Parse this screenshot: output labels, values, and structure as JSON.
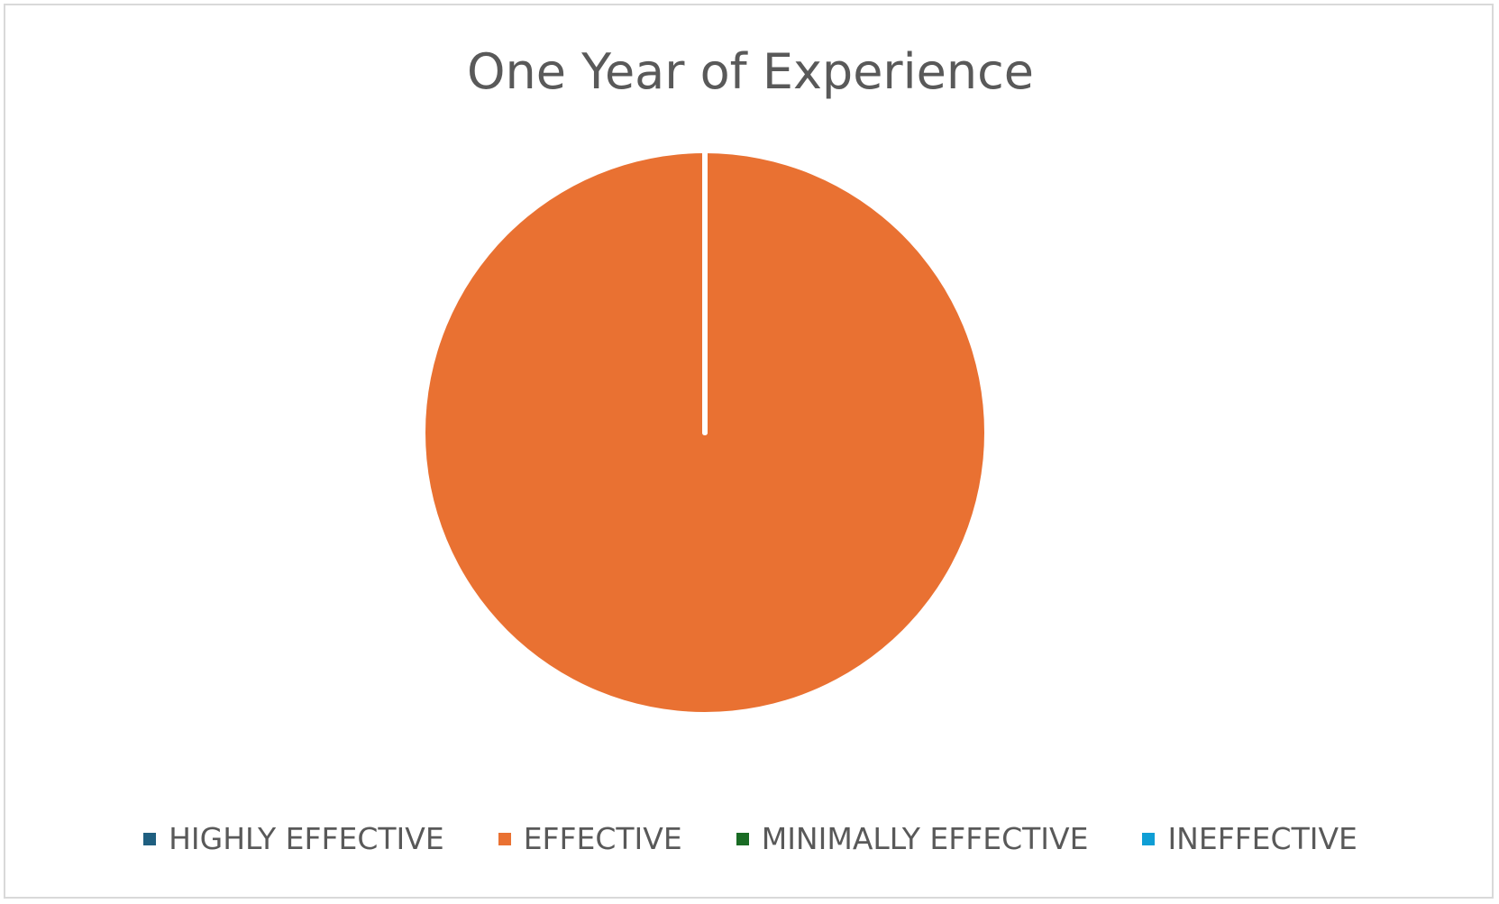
{
  "chart_data": {
    "type": "pie",
    "title": "One Year of Experience",
    "categories": [
      "HIGHLY EFFECTIVE",
      "EFFECTIVE",
      "MINIMALLY EFFECTIVE",
      "INEFFECTIVE"
    ],
    "values": [
      0,
      100,
      0,
      0
    ],
    "colors": [
      "#1f5f80",
      "#e97132",
      "#196b24",
      "#0f9ed5"
    ],
    "legend_position": "bottom"
  }
}
